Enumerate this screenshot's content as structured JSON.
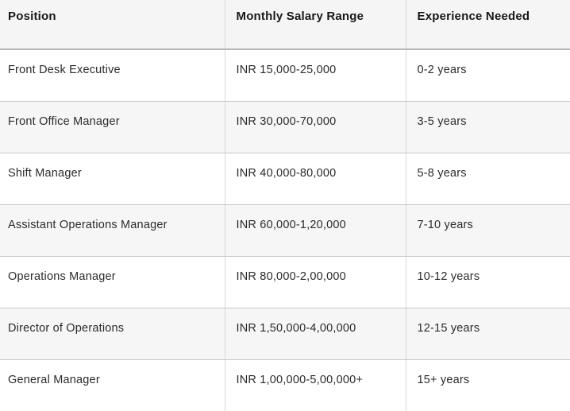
{
  "table": {
    "columns": [
      {
        "label": "Position"
      },
      {
        "label": "Monthly Salary Range"
      },
      {
        "label": "Experience Needed"
      }
    ],
    "rows": [
      {
        "position": "Front Desk Executive",
        "salary": "INR 15,000-25,000",
        "experience": "0-2 years"
      },
      {
        "position": "Front Office Manager",
        "salary": "INR 30,000-70,000",
        "experience": "3-5 years"
      },
      {
        "position": "Shift Manager",
        "salary": "INR 40,000-80,000",
        "experience": "5-8 years"
      },
      {
        "position": "Assistant Operations Manager",
        "salary": "INR 60,000-1,20,000",
        "experience": "7-10 years"
      },
      {
        "position": "Operations Manager",
        "salary": "INR 80,000-2,00,000",
        "experience": "10-12 years"
      },
      {
        "position": "Director of Operations",
        "salary": "INR 1,50,000-4,00,000",
        "experience": "12-15 years"
      },
      {
        "position": "General Manager",
        "salary": "INR 1,00,000-5,00,000+",
        "experience": "15+ years"
      }
    ],
    "colors": {
      "header_bg": "#f5f5f5",
      "stripe_bg": "#f5f6f5",
      "row_bg": "#ffffff",
      "horizontal_border": "#c6c6c6",
      "vertical_border": "#d8d8d8",
      "header_text": "#181818",
      "body_text": "#2b2b2b"
    }
  }
}
